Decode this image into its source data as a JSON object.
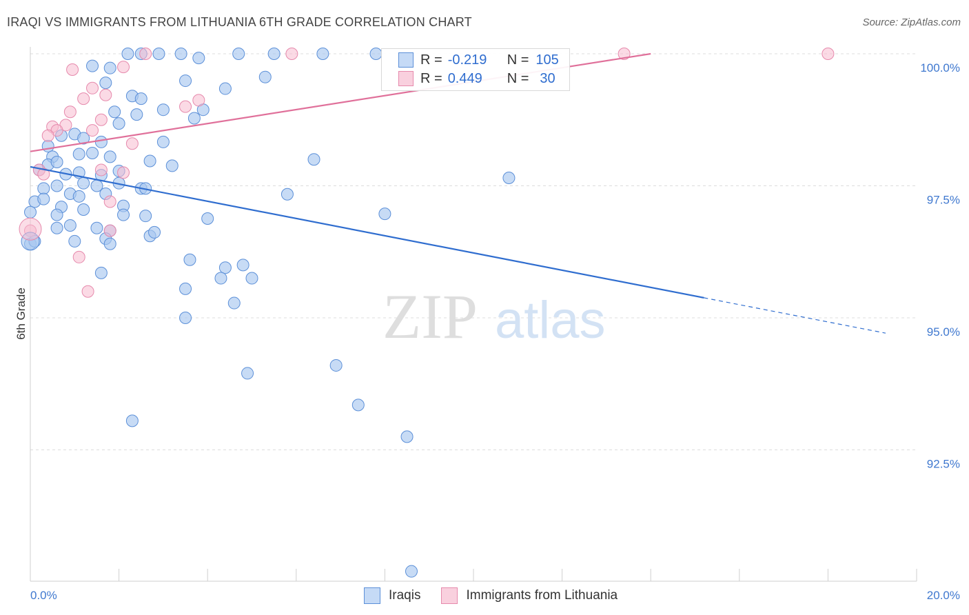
{
  "header": {
    "title": "IRAQI VS IMMIGRANTS FROM LITHUANIA 6TH GRADE CORRELATION CHART",
    "source": "Source: ZipAtlas.com"
  },
  "watermark": {
    "zip": "ZIP",
    "atlas": "atlas"
  },
  "legend_top": {
    "rows": [
      {
        "r_label": "R =",
        "r_value": "-0.219",
        "n_label": "N =",
        "n_value": "105"
      },
      {
        "r_label": "R =",
        "r_value": "0.449",
        "n_label": "N =",
        "n_value": "30"
      }
    ]
  },
  "legend_bottom": {
    "items": [
      {
        "label": "Iraqis"
      },
      {
        "label": "Immigrants from Lithuania"
      }
    ]
  },
  "colors": {
    "blue_fill": "#a9c8f0",
    "blue_stroke": "#5b8fd8",
    "blue_line": "#2f6dcf",
    "pink_fill": "#f7bcd0",
    "pink_stroke": "#e689ac",
    "pink_line": "#e0709a",
    "tick_label": "#3f78cf",
    "grid": "#dcdcdc"
  },
  "chart_data": {
    "type": "scatter",
    "title": "IRAQI VS IMMIGRANTS FROM LITHUANIA 6TH GRADE CORRELATION CHART",
    "xlabel": "",
    "ylabel": "6th Grade",
    "xlim": [
      0,
      20
    ],
    "ylim": [
      90.2,
      100.2
    ],
    "x_tick_labels": [
      {
        "value": 0,
        "label": "0.0%"
      },
      {
        "value": 20,
        "label": "20.0%"
      }
    ],
    "y_tick_labels": [
      {
        "value": 100.0,
        "label": "100.0%"
      },
      {
        "value": 97.5,
        "label": "97.5%"
      },
      {
        "value": 95.0,
        "label": "95.0%"
      },
      {
        "value": 92.5,
        "label": "92.5%"
      }
    ],
    "x_minor_ticks": [
      0,
      2,
      4,
      6,
      8,
      10,
      12,
      14,
      16,
      18,
      20
    ],
    "grid": true,
    "legend_position": "top-center",
    "series": [
      {
        "name": "Iraqis",
        "color": "#a9c8f0",
        "r": -0.219,
        "n": 105,
        "trend": {
          "x0": 0,
          "y0": 97.86,
          "x1": 15.2,
          "y1": 95.38,
          "dash_to_x": 19.3,
          "dash_to_y": 94.71
        },
        "points": [
          [
            2.5,
            100.0
          ],
          [
            2.9,
            100.0
          ],
          [
            3.4,
            100.0
          ],
          [
            3.8,
            99.92
          ],
          [
            4.7,
            100.0
          ],
          [
            5.5,
            100.0
          ],
          [
            6.6,
            100.0
          ],
          [
            7.8,
            100.0
          ],
          [
            1.4,
            99.77
          ],
          [
            1.8,
            99.73
          ],
          [
            2.2,
            100.0
          ],
          [
            3.5,
            99.49
          ],
          [
            4.4,
            99.34
          ],
          [
            5.3,
            99.56
          ],
          [
            1.7,
            99.45
          ],
          [
            2.3,
            99.2
          ],
          [
            2.5,
            99.15
          ],
          [
            3.0,
            98.94
          ],
          [
            3.7,
            98.78
          ],
          [
            3.9,
            98.94
          ],
          [
            1.9,
            98.9
          ],
          [
            2.0,
            98.68
          ],
          [
            2.4,
            98.85
          ],
          [
            0.4,
            98.25
          ],
          [
            0.7,
            98.45
          ],
          [
            1.0,
            98.48
          ],
          [
            1.2,
            98.4
          ],
          [
            1.6,
            98.33
          ],
          [
            3.0,
            98.33
          ],
          [
            0.5,
            98.05
          ],
          [
            1.1,
            98.1
          ],
          [
            1.4,
            98.12
          ],
          [
            1.8,
            98.05
          ],
          [
            2.7,
            97.97
          ],
          [
            3.2,
            97.88
          ],
          [
            6.4,
            98.0
          ],
          [
            0.2,
            97.8
          ],
          [
            0.4,
            97.9
          ],
          [
            0.6,
            97.95
          ],
          [
            0.8,
            97.72
          ],
          [
            1.1,
            97.75
          ],
          [
            1.6,
            97.7
          ],
          [
            2.0,
            97.78
          ],
          [
            0.3,
            97.45
          ],
          [
            0.6,
            97.5
          ],
          [
            0.9,
            97.35
          ],
          [
            1.2,
            97.55
          ],
          [
            1.5,
            97.5
          ],
          [
            2.0,
            97.55
          ],
          [
            2.5,
            97.45
          ],
          [
            5.8,
            97.34
          ],
          [
            10.8,
            97.65
          ],
          [
            0.1,
            97.2
          ],
          [
            0.3,
            97.25
          ],
          [
            0.7,
            97.1
          ],
          [
            1.1,
            97.3
          ],
          [
            1.7,
            97.35
          ],
          [
            2.1,
            97.12
          ],
          [
            2.6,
            97.45
          ],
          [
            0.0,
            97.0
          ],
          [
            0.6,
            96.95
          ],
          [
            1.2,
            97.05
          ],
          [
            2.1,
            96.95
          ],
          [
            2.6,
            96.93
          ],
          [
            4.0,
            96.88
          ],
          [
            8.0,
            96.97
          ],
          [
            0.6,
            96.7
          ],
          [
            0.9,
            96.75
          ],
          [
            1.5,
            96.7
          ],
          [
            1.8,
            96.65
          ],
          [
            2.7,
            96.55
          ],
          [
            2.8,
            96.62
          ],
          [
            0.0,
            96.4
          ],
          [
            0.1,
            96.45
          ],
          [
            1.0,
            96.45
          ],
          [
            1.7,
            96.5
          ],
          [
            1.8,
            96.4
          ],
          [
            3.6,
            96.1
          ],
          [
            4.4,
            95.95
          ],
          [
            4.8,
            96.0
          ],
          [
            1.6,
            95.85
          ],
          [
            4.3,
            95.75
          ],
          [
            5.0,
            95.75
          ],
          [
            3.5,
            95.55
          ],
          [
            4.6,
            95.28
          ],
          [
            3.5,
            95.0
          ],
          [
            6.9,
            94.1
          ],
          [
            4.9,
            93.95
          ],
          [
            7.4,
            93.35
          ],
          [
            2.3,
            93.05
          ],
          [
            8.5,
            92.75
          ],
          [
            8.6,
            90.2
          ]
        ]
      },
      {
        "name": "Immigrants from Lithuania",
        "color": "#f7bcd0",
        "r": 0.449,
        "n": 30,
        "trend": {
          "x0": 0,
          "y0": 98.15,
          "x1": 14.0,
          "y1": 100.0
        },
        "points": [
          [
            2.6,
            100.0
          ],
          [
            5.9,
            100.0
          ],
          [
            13.4,
            100.0
          ],
          [
            18.0,
            100.0
          ],
          [
            0.95,
            99.7
          ],
          [
            2.1,
            99.75
          ],
          [
            1.4,
            99.35
          ],
          [
            1.7,
            99.22
          ],
          [
            1.2,
            99.15
          ],
          [
            3.8,
            99.12
          ],
          [
            3.5,
            99.0
          ],
          [
            0.9,
            98.9
          ],
          [
            1.6,
            98.75
          ],
          [
            0.5,
            98.62
          ],
          [
            0.8,
            98.65
          ],
          [
            0.6,
            98.55
          ],
          [
            1.4,
            98.55
          ],
          [
            0.4,
            98.45
          ],
          [
            2.3,
            98.3
          ],
          [
            0.2,
            97.8
          ],
          [
            1.6,
            97.8
          ],
          [
            2.1,
            97.75
          ],
          [
            0.3,
            97.72
          ],
          [
            1.8,
            97.2
          ],
          [
            0.0,
            96.65
          ],
          [
            1.8,
            96.65
          ],
          [
            1.1,
            96.15
          ],
          [
            1.3,
            95.5
          ]
        ]
      }
    ]
  }
}
